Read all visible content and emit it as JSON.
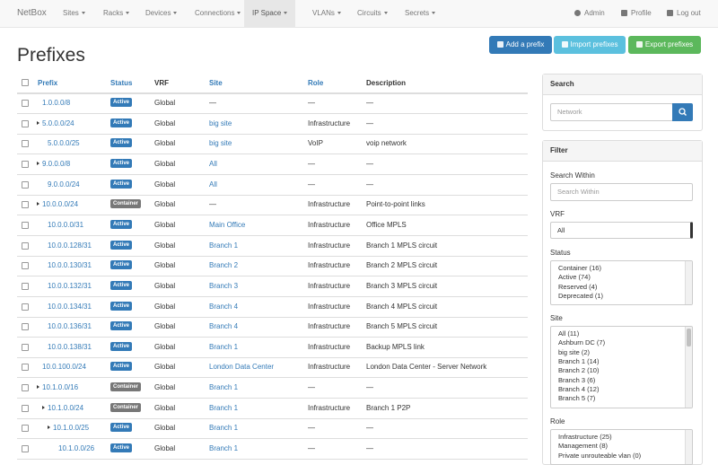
{
  "navbar": {
    "brand": "NetBox",
    "menu": [
      "Sites",
      "Racks",
      "Devices",
      "Connections",
      "IP Space",
      "VLANs",
      "Circuits",
      "Secrets"
    ],
    "active": "IP Space",
    "user_menu": [
      "Admin",
      "Profile",
      "Log out"
    ]
  },
  "buttons": [
    "Add a prefix",
    "Import prefixes",
    "Export prefixes"
  ],
  "page_title": "Prefixes",
  "table": {
    "headers": [
      "Prefix",
      "Status",
      "VRF",
      "Site",
      "Role",
      "Description"
    ],
    "rows": [
      {
        "prefix": "1.0.0.0/8",
        "status": "Active",
        "vrf": "Global",
        "site": "—",
        "role": "—",
        "description": "—",
        "depth": 0,
        "expandable": false
      },
      {
        "prefix": "5.0.0.0/24",
        "status": "Active",
        "vrf": "Global",
        "site": "big site",
        "role": "Infrastructure",
        "description": "—",
        "depth": 0,
        "expandable": true
      },
      {
        "prefix": "5.0.0.0/25",
        "status": "Active",
        "vrf": "Global",
        "site": "big site",
        "role": "VoIP",
        "description": "voip network",
        "depth": 1,
        "expandable": false
      },
      {
        "prefix": "9.0.0.0/8",
        "status": "Active",
        "vrf": "Global",
        "site": "All",
        "role": "—",
        "description": "—",
        "depth": 0,
        "expandable": true
      },
      {
        "prefix": "9.0.0.0/24",
        "status": "Active",
        "vrf": "Global",
        "site": "All",
        "role": "—",
        "description": "—",
        "depth": 1,
        "expandable": false
      },
      {
        "prefix": "10.0.0.0/24",
        "status": "Container",
        "vrf": "Global",
        "site": "—",
        "role": "Infrastructure",
        "description": "Point-to-point links",
        "depth": 0,
        "expandable": true
      },
      {
        "prefix": "10.0.0.0/31",
        "status": "Active",
        "vrf": "Global",
        "site": "Main Office",
        "role": "Infrastructure",
        "description": "Office MPLS",
        "depth": 1,
        "expandable": false
      },
      {
        "prefix": "10.0.0.128/31",
        "status": "Active",
        "vrf": "Global",
        "site": "Branch 1",
        "role": "Infrastructure",
        "description": "Branch 1 MPLS circuit",
        "depth": 1,
        "expandable": false
      },
      {
        "prefix": "10.0.0.130/31",
        "status": "Active",
        "vrf": "Global",
        "site": "Branch 2",
        "role": "Infrastructure",
        "description": "Branch 2 MPLS circuit",
        "depth": 1,
        "expandable": false
      },
      {
        "prefix": "10.0.0.132/31",
        "status": "Active",
        "vrf": "Global",
        "site": "Branch 3",
        "role": "Infrastructure",
        "description": "Branch 3 MPLS circuit",
        "depth": 1,
        "expandable": false
      },
      {
        "prefix": "10.0.0.134/31",
        "status": "Active",
        "vrf": "Global",
        "site": "Branch 4",
        "role": "Infrastructure",
        "description": "Branch 4 MPLS circuit",
        "depth": 1,
        "expandable": false
      },
      {
        "prefix": "10.0.0.136/31",
        "status": "Active",
        "vrf": "Global",
        "site": "Branch 4",
        "role": "Infrastructure",
        "description": "Branch 5 MPLS circuit",
        "depth": 1,
        "expandable": false
      },
      {
        "prefix": "10.0.0.138/31",
        "status": "Active",
        "vrf": "Global",
        "site": "Branch 1",
        "role": "Infrastructure",
        "description": "Backup MPLS link",
        "depth": 1,
        "expandable": false
      },
      {
        "prefix": "10.0.100.0/24",
        "status": "Active",
        "vrf": "Global",
        "site": "London Data Center",
        "role": "Infrastructure",
        "description": "London Data Center - Server Network",
        "depth": 0,
        "expandable": false
      },
      {
        "prefix": "10.1.0.0/16",
        "status": "Container",
        "vrf": "Global",
        "site": "Branch 1",
        "role": "—",
        "description": "—",
        "depth": 0,
        "expandable": true
      },
      {
        "prefix": "10.1.0.0/24",
        "status": "Container",
        "vrf": "Global",
        "site": "Branch 1",
        "role": "Infrastructure",
        "description": "Branch 1 P2P",
        "depth": 1,
        "expandable": true
      },
      {
        "prefix": "10.1.0.0/25",
        "status": "Active",
        "vrf": "Global",
        "site": "Branch 1",
        "role": "—",
        "description": "—",
        "depth": 2,
        "expandable": true
      },
      {
        "prefix": "10.1.0.0/26",
        "status": "Active",
        "vrf": "Global",
        "site": "Branch 1",
        "role": "—",
        "description": "—",
        "depth": 3,
        "expandable": false
      }
    ]
  },
  "search": {
    "title": "Search",
    "placeholder": "Network"
  },
  "filter": {
    "title": "Filter",
    "search_within_label": "Search Within",
    "search_within_placeholder": "Search Within",
    "vrf_label": "VRF",
    "vrf_value": "All",
    "status_label": "Status",
    "status_options": [
      "Container (16)",
      "Active (74)",
      "Reserved (4)",
      "Deprecated (1)"
    ],
    "site_label": "Site",
    "site_options": [
      "All (11)",
      "Ashburn DC (7)",
      "big site (2)",
      "Branch 1 (14)",
      "Branch 2 (10)",
      "Branch 3 (6)",
      "Branch 4 (12)",
      "Branch 5 (7)"
    ],
    "role_label": "Role",
    "role_options": [
      "Infrastructure (25)",
      "Management (8)",
      "Private unrouteable vlan (0)"
    ]
  }
}
